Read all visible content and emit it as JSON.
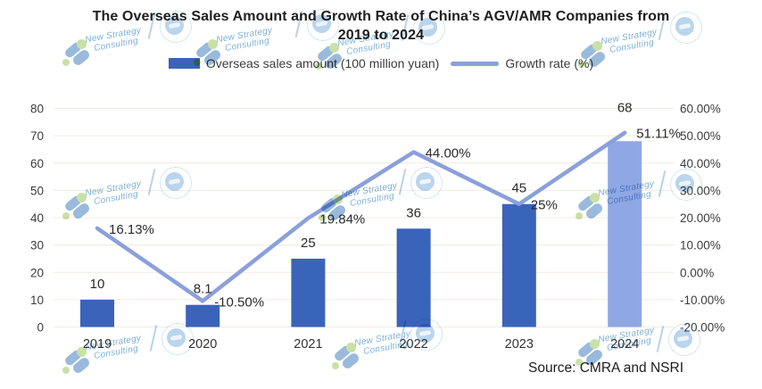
{
  "title": {
    "line1": "The Overseas Sales Amount and Growth Rate of China’s AGV/AMR Companies from",
    "line2": "2019 to 2024"
  },
  "legend": [
    {
      "label": "Overseas sales amount (100 million yuan)",
      "swatch": "bar-swatch"
    },
    {
      "label": "Growth rate (%)",
      "swatch": "line-swatch"
    }
  ],
  "source": "Source: CMRA and NSRI",
  "watermark": {
    "line1": "New Strategy",
    "line2": "Consulting"
  },
  "icons": {
    "watermark_logo": "new-strategy-logo-icon",
    "seal": "circular-seal-stamp-icon"
  },
  "colors": {
    "bar": "#3A63BA",
    "bar_highlight": "#8FA7E4",
    "line": "#8B9FDC",
    "grid": "#F0ECE1",
    "axis_text": "#3D3D3D",
    "title_text": "#202020"
  },
  "chart_data": {
    "type": "bar",
    "subtype": "bar+line combo, dual axis",
    "title": "The Overseas Sales Amount and Growth Rate of China’s AGV/AMR Companies from 2019 to 2024",
    "categories": [
      "2019",
      "2020",
      "2021",
      "2022",
      "2023",
      "2024"
    ],
    "series": [
      {
        "name": "Overseas sales amount (100 million yuan)",
        "type": "bar",
        "axis": "left",
        "values": [
          10,
          8.1,
          25,
          36,
          45,
          68
        ],
        "labels": [
          "10",
          "8.1",
          "25",
          "36",
          "45",
          "68"
        ]
      },
      {
        "name": "Growth rate (%)",
        "type": "line",
        "axis": "right",
        "values": [
          16.13,
          -10.5,
          19.84,
          44,
          25,
          51.11
        ],
        "labels": [
          "16.13%",
          "-10.50%",
          "19.84%",
          "44.00%",
          "25%",
          "51.11%"
        ]
      }
    ],
    "bar_colors": [
      "#3A63BA",
      "#3A63BA",
      "#3A63BA",
      "#3A63BA",
      "#3A63BA",
      "#8FA7E4"
    ],
    "left_axis": {
      "min": 0,
      "max": 80,
      "step": 10,
      "ticks": [
        "0",
        "10",
        "20",
        "30",
        "40",
        "50",
        "60",
        "70",
        "80"
      ]
    },
    "right_axis": {
      "min": -20,
      "max": 60,
      "step": 10,
      "ticks": [
        "-20.00%",
        "-10.00%",
        "0.00%",
        "10.00%",
        "20.00%",
        "30.00%",
        "40.00%",
        "50.00%",
        "60.00%"
      ]
    },
    "grid": true,
    "legend_position": "top",
    "source_note": "Source: CMRA and NSRI"
  }
}
